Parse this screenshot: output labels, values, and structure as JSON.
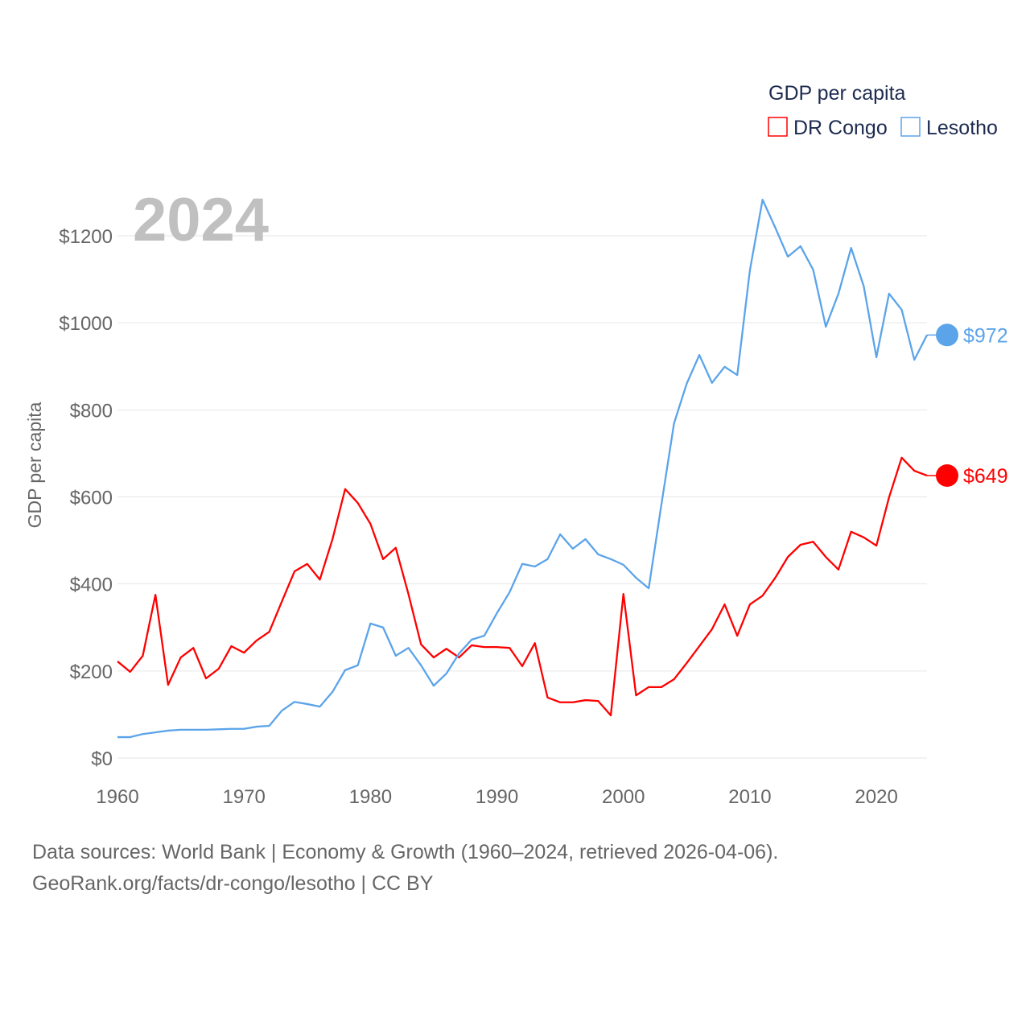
{
  "chart_data": {
    "type": "line",
    "title": "GDP per capita",
    "ylabel": "GDP per capita",
    "xlabel": "",
    "year_label": "2024",
    "xlim": [
      1960,
      2024
    ],
    "ylim": [
      0,
      1200
    ],
    "x_ticks": [
      1960,
      1970,
      1980,
      1990,
      2000,
      2010,
      2020
    ],
    "y_ticks": [
      0,
      200,
      400,
      600,
      800,
      1000,
      1200
    ],
    "y_tick_labels": [
      "$0",
      "$200",
      "$400",
      "$600",
      "$800",
      "$1000",
      "$1200"
    ],
    "grid": true,
    "legend_position": "top-right",
    "x_start": 1960,
    "series": [
      {
        "name": "DR Congo",
        "color": "#ff0000",
        "end_label": "$649",
        "values": [
          222,
          198,
          235,
          375,
          168,
          231,
          253,
          183,
          205,
          257,
          242,
          270,
          290,
          360,
          429,
          446,
          410,
          503,
          618,
          586,
          538,
          457,
          483,
          377,
          261,
          231,
          251,
          231,
          259,
          255,
          255,
          253,
          211,
          264,
          139,
          128,
          128,
          133,
          131,
          98,
          377,
          144,
          163,
          163,
          181,
          218,
          257,
          296,
          353,
          281,
          353,
          373,
          414,
          462,
          490,
          497,
          462,
          433,
          520,
          507,
          488,
          599,
          690,
          660,
          649
        ]
      },
      {
        "name": "Lesotho",
        "color": "#5ba4ea",
        "end_label": "$972",
        "values": [
          48,
          48,
          55,
          59,
          63,
          65,
          65,
          65,
          66,
          67,
          67,
          72,
          74,
          109,
          129,
          124,
          118,
          152,
          202,
          213,
          309,
          300,
          235,
          253,
          213,
          166,
          194,
          240,
          272,
          281,
          333,
          381,
          446,
          440,
          457,
          514,
          481,
          503,
          468,
          457,
          444,
          414,
          390,
          582,
          769,
          860,
          926,
          862,
          899,
          880,
          1121,
          1283,
          1219,
          1152,
          1176,
          1122,
          991,
          1067,
          1172,
          1084,
          921,
          1067,
          1030,
          915,
          972
        ]
      }
    ]
  },
  "footer": {
    "line1": "Data sources: World Bank | Economy & Growth (1960–2024, retrieved 2026-04-06).",
    "line2": "GeoRank.org/facts/dr-congo/lesotho | CC BY"
  }
}
